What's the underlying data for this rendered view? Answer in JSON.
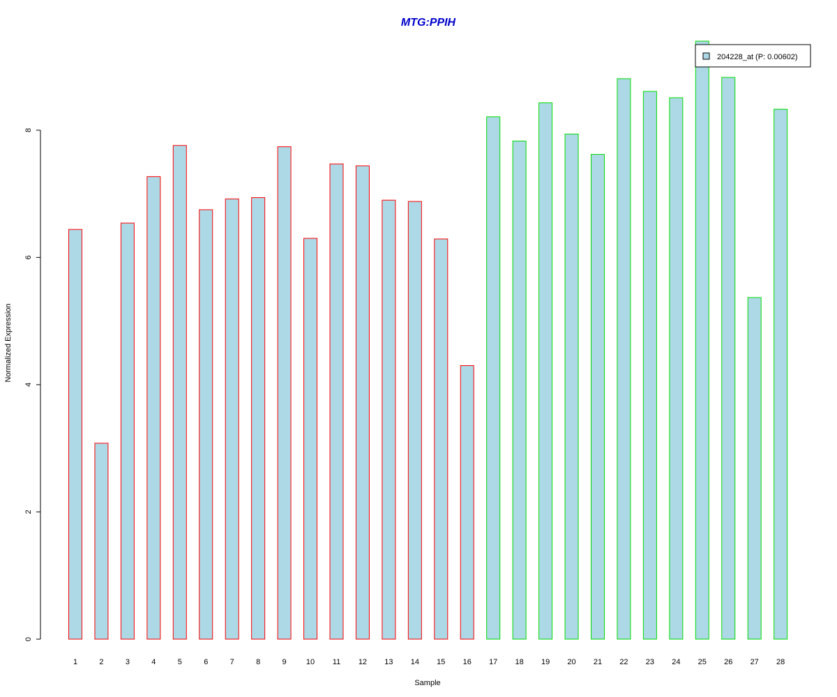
{
  "chart_data": {
    "type": "bar",
    "title": "MTG:PPIH",
    "xlabel": "Sample",
    "ylabel": "Normalized Expression",
    "categories": [
      "1",
      "2",
      "3",
      "4",
      "5",
      "6",
      "7",
      "8",
      "9",
      "10",
      "11",
      "12",
      "13",
      "14",
      "15",
      "16",
      "17",
      "18",
      "19",
      "20",
      "21",
      "22",
      "23",
      "24",
      "25",
      "26",
      "27",
      "28"
    ],
    "series": [
      {
        "name": "204228_at (P: 0.00602)",
        "values": [
          6.44,
          3.08,
          6.54,
          7.27,
          7.76,
          6.75,
          6.92,
          6.94,
          7.74,
          6.3,
          7.47,
          7.44,
          6.9,
          6.88,
          6.29,
          4.3,
          8.21,
          7.83,
          8.43,
          7.94,
          7.62,
          8.81,
          8.61,
          8.51,
          9.4,
          8.83,
          5.37,
          8.33
        ]
      }
    ],
    "groups": [
      1,
      1,
      1,
      1,
      1,
      1,
      1,
      1,
      1,
      1,
      1,
      1,
      1,
      1,
      1,
      1,
      2,
      2,
      2,
      2,
      2,
      2,
      2,
      2,
      2,
      2,
      2,
      2
    ],
    "yticks": [
      0,
      2,
      4,
      6,
      8
    ],
    "ylim": [
      0,
      9.4
    ],
    "legend_position": "top-right",
    "grid": false,
    "colors": {
      "title": "#0000CC",
      "bar_fill": "#ADD8E6",
      "group1_border": "#FF0000",
      "group2_border": "#00DD00",
      "axis": "#000000"
    }
  }
}
